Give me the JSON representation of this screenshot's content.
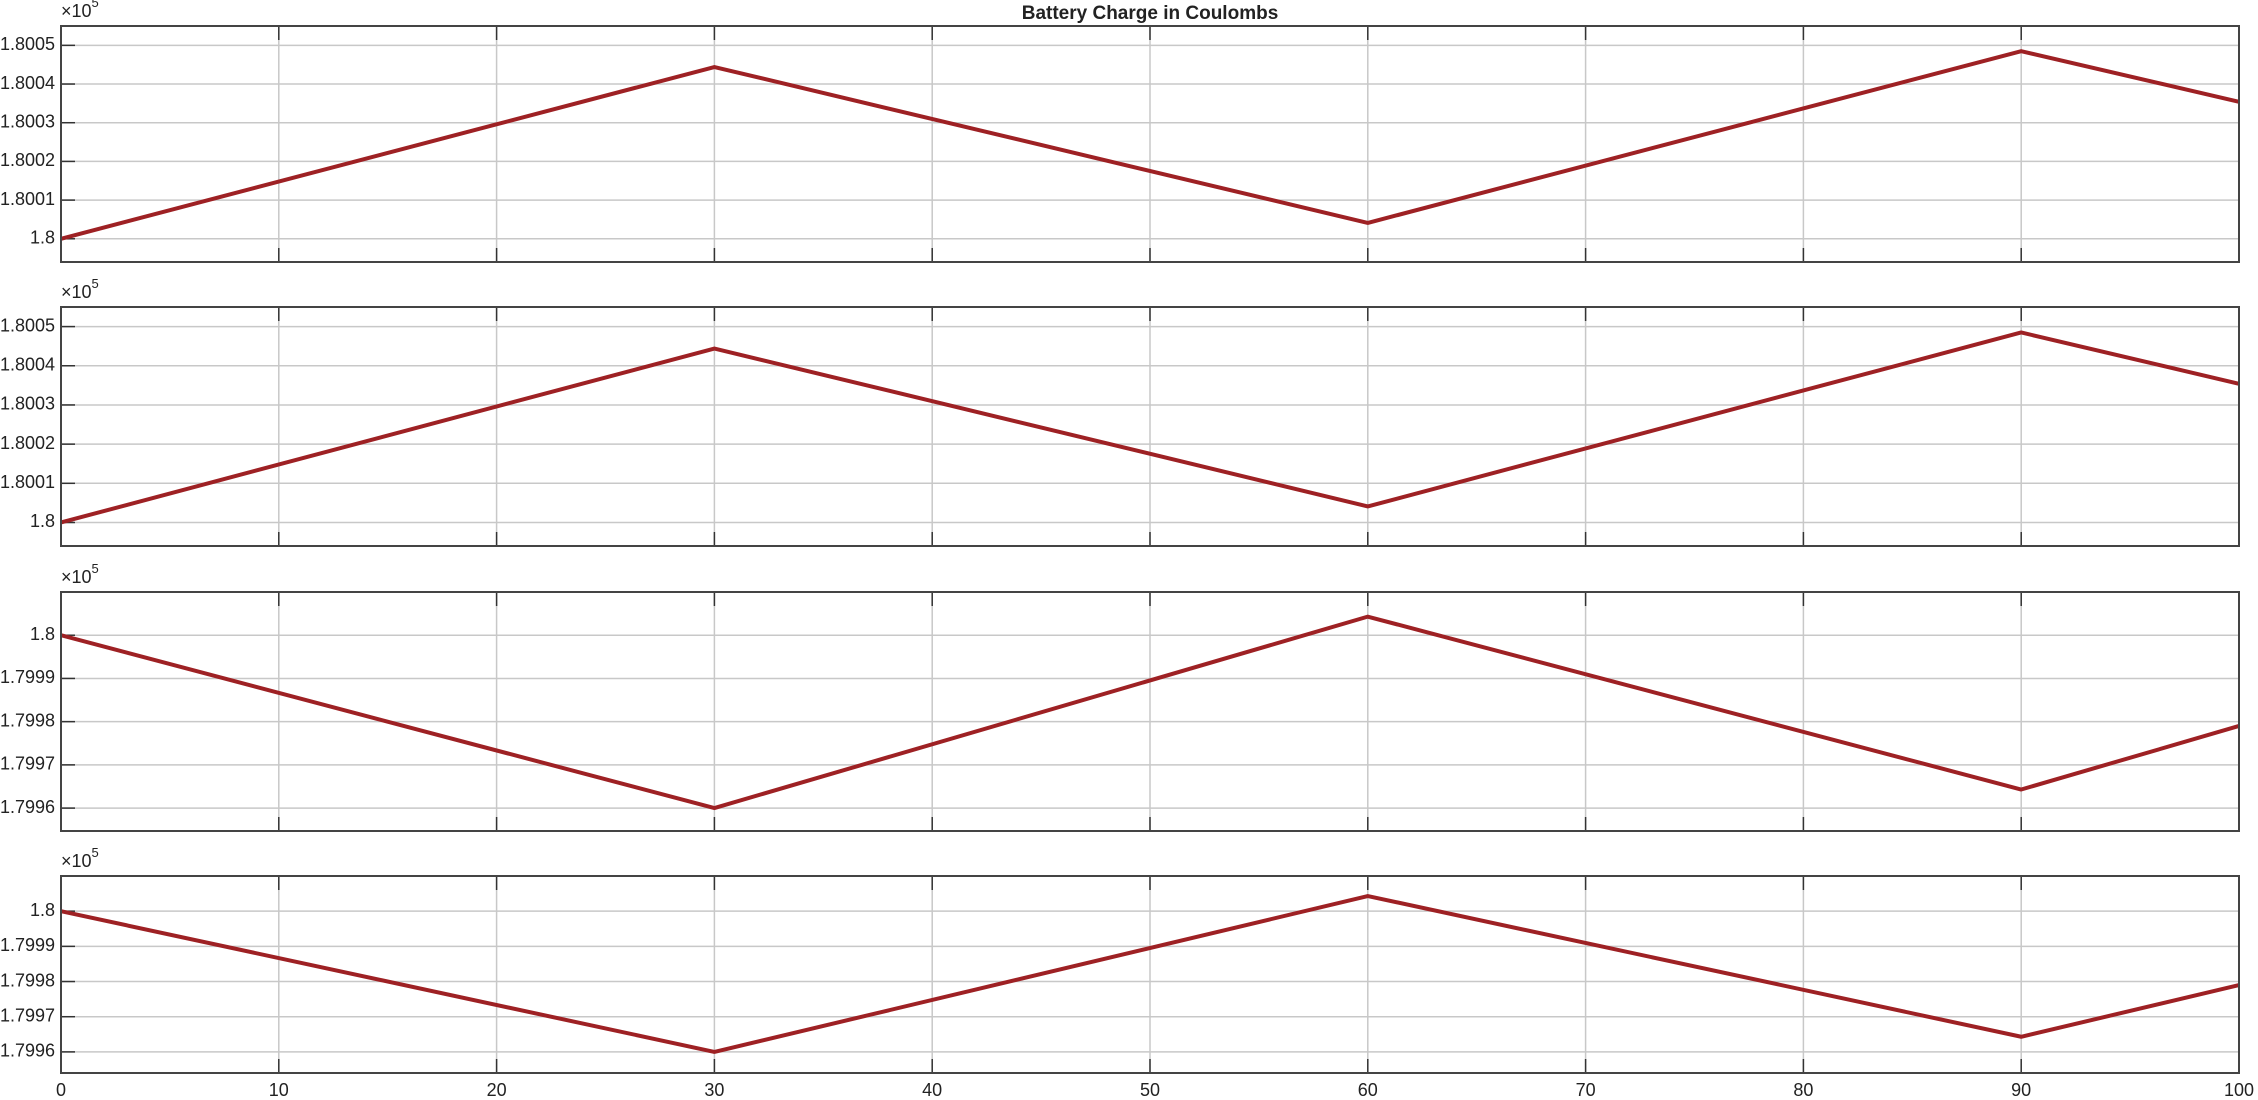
{
  "chart_data": [
    {
      "type": "line",
      "title": "Battery Charge in Coulombs",
      "y_scale_base": "×10",
      "y_scale_exponent": "5",
      "x": [
        0,
        30,
        60,
        90,
        100
      ],
      "values": [
        1.8,
        1.800444,
        1.800041,
        1.800485,
        1.800354
      ],
      "color": "#9e2124",
      "xlim": [
        0,
        100
      ],
      "xticks": [
        0,
        10,
        20,
        30,
        40,
        50,
        60,
        70,
        80,
        90,
        100
      ],
      "xtick_labels": false,
      "ylim": [
        1.79994,
        1.80055
      ],
      "yticks": [
        1.8,
        1.8001,
        1.8002,
        1.8003,
        1.8004,
        1.8005
      ],
      "grid": true
    },
    {
      "type": "line",
      "y_scale_base": "×10",
      "y_scale_exponent": "5",
      "x": [
        0,
        30,
        60,
        90,
        100
      ],
      "values": [
        1.8,
        1.800444,
        1.800041,
        1.800485,
        1.800354
      ],
      "color": "#9e2124",
      "xlim": [
        0,
        100
      ],
      "xticks": [
        0,
        10,
        20,
        30,
        40,
        50,
        60,
        70,
        80,
        90,
        100
      ],
      "xtick_labels": false,
      "ylim": [
        1.79994,
        1.80055
      ],
      "yticks": [
        1.8,
        1.8001,
        1.8002,
        1.8003,
        1.8004,
        1.8005
      ],
      "grid": true
    },
    {
      "type": "line",
      "y_scale_base": "×10",
      "y_scale_exponent": "5",
      "x": [
        0,
        30,
        60,
        90,
        100
      ],
      "values": [
        1.8,
        1.7996,
        1.800043,
        1.799643,
        1.79979
      ],
      "color": "#9e2124",
      "xlim": [
        0,
        100
      ],
      "xticks": [
        0,
        10,
        20,
        30,
        40,
        50,
        60,
        70,
        80,
        90,
        100
      ],
      "xtick_labels": false,
      "ylim": [
        1.799547,
        1.8001
      ],
      "yticks": [
        1.7996,
        1.7997,
        1.7998,
        1.7999,
        1.8
      ],
      "grid": true
    },
    {
      "type": "line",
      "y_scale_base": "×10",
      "y_scale_exponent": "5",
      "x": [
        0,
        30,
        60,
        90,
        100
      ],
      "values": [
        1.8,
        1.7996,
        1.800043,
        1.799643,
        1.79979
      ],
      "color": "#9e2124",
      "xlim": [
        0,
        100
      ],
      "xticks": [
        0,
        10,
        20,
        30,
        40,
        50,
        60,
        70,
        80,
        90,
        100
      ],
      "xtick_labels": true,
      "ylim": [
        1.79954,
        1.8001
      ],
      "yticks": [
        1.7996,
        1.7997,
        1.7998,
        1.7999,
        1.8
      ],
      "grid": true
    }
  ]
}
